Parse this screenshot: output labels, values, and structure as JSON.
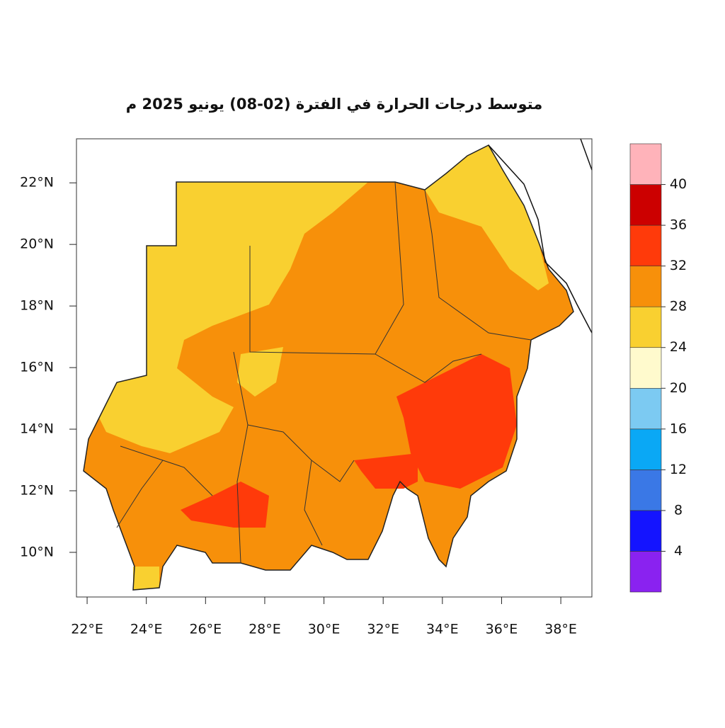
{
  "map": {
    "title": "متوسط درجات الحرارة في الفترة (02-08) يونيو 2025 م",
    "xlim": [
      21.64,
      39.05
    ],
    "ylim": [
      8.55,
      23.43
    ],
    "xticks": [
      {
        "value": 22,
        "label": "22°E"
      },
      {
        "value": 24,
        "label": "24°E"
      },
      {
        "value": 26,
        "label": "26°E"
      },
      {
        "value": 28,
        "label": "28°E"
      },
      {
        "value": 30,
        "label": "30°E"
      },
      {
        "value": 32,
        "label": "32°E"
      },
      {
        "value": 34,
        "label": "34°E"
      },
      {
        "value": 36,
        "label": "36°E"
      },
      {
        "value": 38,
        "label": "38°E"
      }
    ],
    "yticks": [
      {
        "value": 10,
        "label": "10°N"
      },
      {
        "value": 12,
        "label": "12°N"
      },
      {
        "value": 14,
        "label": "14°N"
      },
      {
        "value": 16,
        "label": "16°N"
      },
      {
        "value": 18,
        "label": "18°N"
      },
      {
        "value": 20,
        "label": "20°N"
      },
      {
        "value": 22,
        "label": "22°N"
      }
    ],
    "colorbar": {
      "levels": [
        4,
        8,
        12,
        16,
        20,
        24,
        28,
        32,
        36,
        40
      ],
      "colors": [
        "#8a22f0",
        "#1414ff",
        "#3a78e6",
        "#0aa8f5",
        "#7ccaf2",
        "#fffacd",
        "#f9d030",
        "#f7900a",
        "#ff3a0a",
        "#cc0000",
        "#ffb3ba"
      ]
    }
  }
}
